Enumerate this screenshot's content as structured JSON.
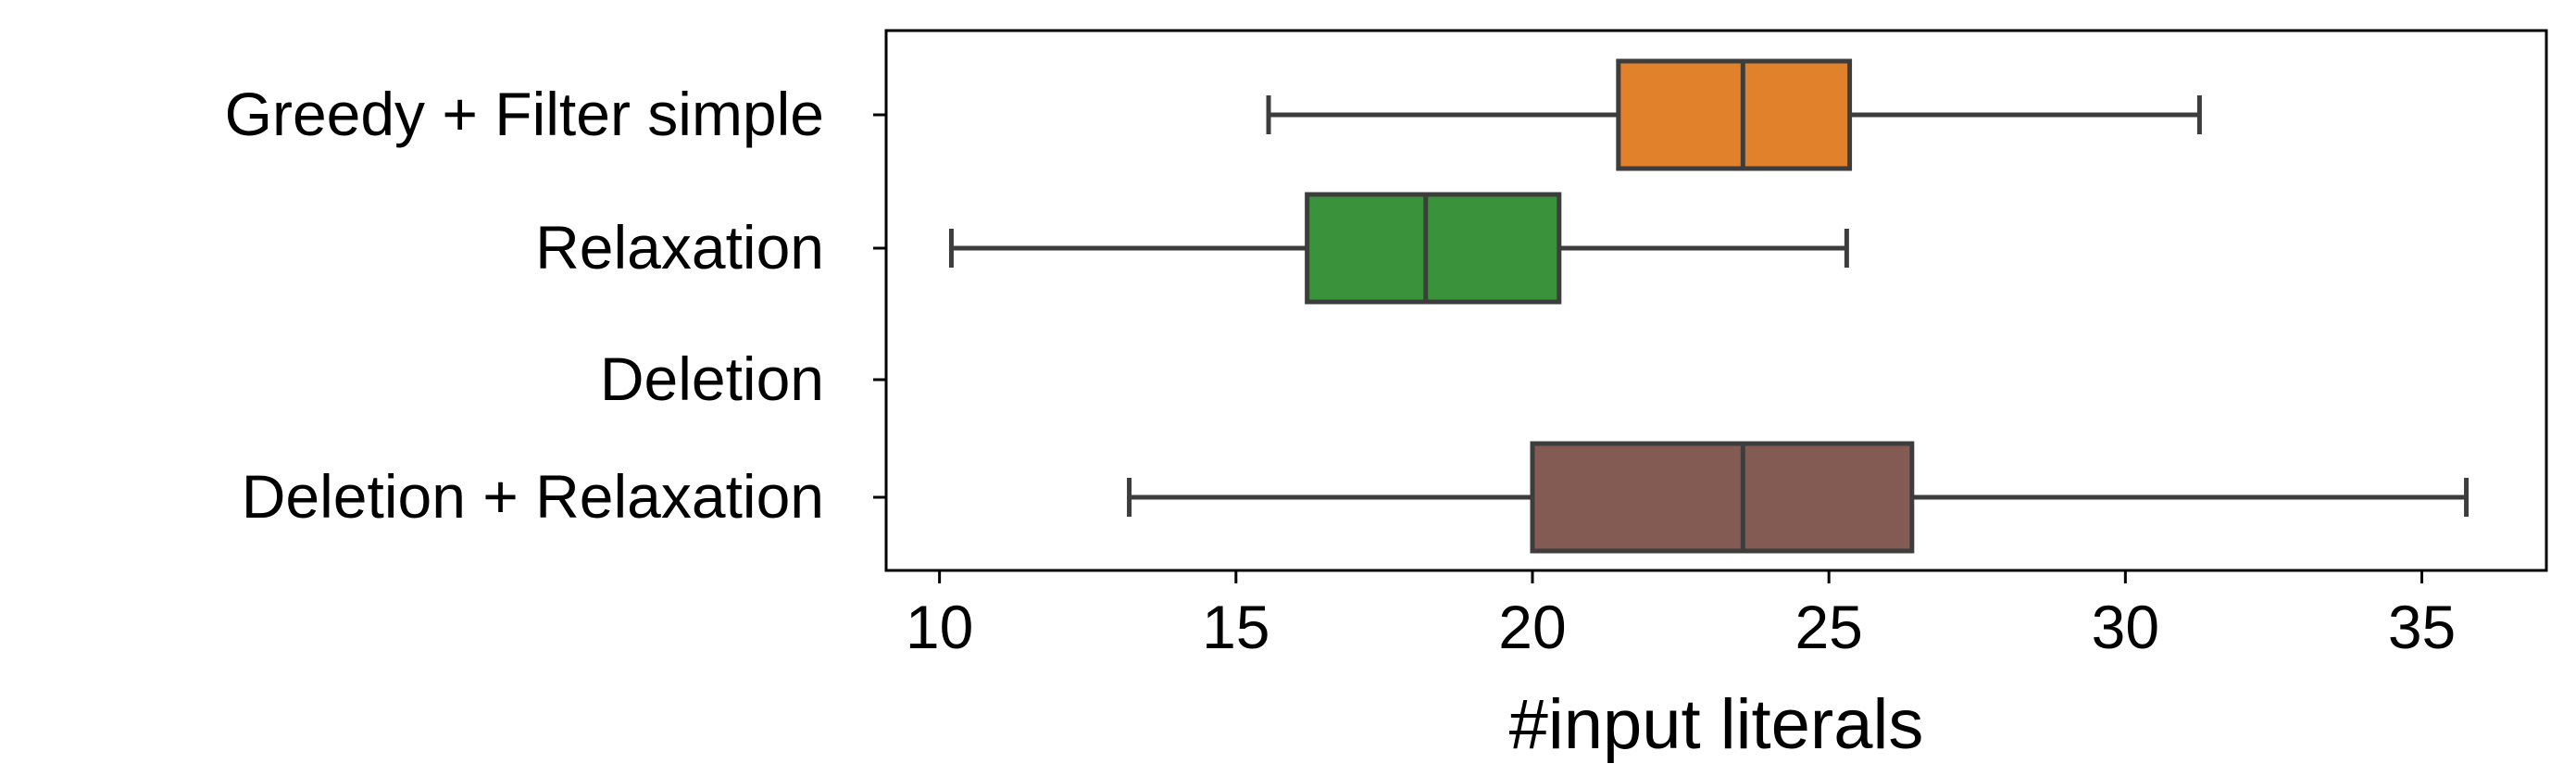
{
  "chart_data": {
    "type": "boxplot",
    "orientation": "horizontal",
    "title": "",
    "xlabel": "#input literals",
    "ylabel": "",
    "xlim": [
      9.1,
      37.1
    ],
    "xticks": [
      10,
      15,
      20,
      25,
      30,
      35
    ],
    "xtick_labels": [
      "10",
      "15",
      "20",
      "25",
      "30",
      "35"
    ],
    "grid": false,
    "categories": [
      "Greedy + Filter simple",
      "Relaxation",
      "Deletion",
      "Deletion + Relaxation"
    ],
    "boxes": [
      {
        "category": "Greedy + Filter simple",
        "whisker_low": 15.55,
        "q1": 21.45,
        "median": 23.55,
        "q3": 25.35,
        "whisker_high": 31.25,
        "color": "#E1812C"
      },
      {
        "category": "Relaxation",
        "whisker_low": 10.2,
        "q1": 16.2,
        "median": 18.2,
        "q3": 20.45,
        "whisker_high": 25.3,
        "color": "#3A923A"
      },
      {
        "category": "Deletion",
        "empty": true
      },
      {
        "category": "Deletion + Relaxation",
        "whisker_low": 13.2,
        "q1": 20.0,
        "median": 23.55,
        "q3": 26.4,
        "whisker_high": 35.75,
        "color": "#845B53"
      }
    ],
    "line_color": "#3d3d3d"
  }
}
